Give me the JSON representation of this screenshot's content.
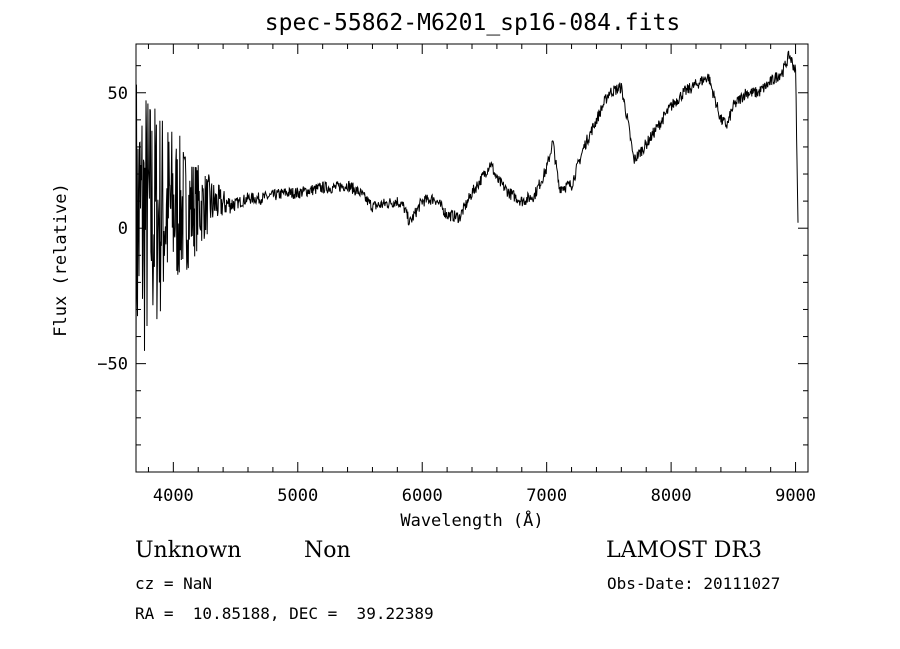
{
  "chart_data": {
    "type": "line",
    "title": "spec-55862-M6201_sp16-084.fits",
    "xlabel": "Wavelength (Å)",
    "ylabel": "Flux (relative)",
    "xlim": [
      3700,
      9100
    ],
    "ylim": [
      -90,
      68
    ],
    "xticks": [
      4000,
      5000,
      6000,
      7000,
      8000,
      9000
    ],
    "xtick_labels": [
      "4000",
      "5000",
      "6000",
      "7000",
      "8000",
      "9000"
    ],
    "yticks": [
      -50,
      0,
      50
    ],
    "ytick_labels": [
      "−50",
      "0",
      "50"
    ],
    "grid": false,
    "legend": "none",
    "series": [
      {
        "x": [
          3700,
          3800,
          3900,
          4000,
          4100,
          4200,
          4300,
          4400,
          4500,
          4600,
          4700,
          4800,
          4900,
          5000,
          5100,
          5200,
          5300,
          5400,
          5500,
          5600,
          5700,
          5800,
          5850,
          5900,
          5950,
          6000,
          6100,
          6200,
          6300,
          6400,
          6500,
          6550,
          6600,
          6700,
          6800,
          6900,
          7000,
          7050,
          7100,
          7200,
          7300,
          7400,
          7500,
          7600,
          7650,
          7700,
          7800,
          7900,
          8000,
          8100,
          8200,
          8300,
          8400,
          8450,
          8500,
          8600,
          8700,
          8800,
          8900,
          8950,
          9000,
          9020
        ],
        "y": [
          2,
          3,
          6,
          7,
          7,
          8,
          9,
          9,
          9,
          11,
          11,
          12,
          13,
          13,
          14,
          15,
          15,
          16,
          13,
          8,
          9,
          10,
          8,
          2,
          6,
          10,
          11,
          5,
          4,
          13,
          20,
          24,
          18,
          13,
          10,
          12,
          22,
          32,
          15,
          16,
          30,
          40,
          50,
          52,
          40,
          25,
          31,
          38,
          45,
          50,
          53,
          56,
          40,
          38,
          45,
          50,
          50,
          54,
          58,
          64,
          58,
          1
        ]
      }
    ],
    "noise_region": {
      "x_start": 3700,
      "x_end": 4500,
      "amplitude_max": 58
    }
  },
  "footer": {
    "object_class": "Unknown",
    "subclass": "Non",
    "survey": "LAMOST DR3",
    "redshift": "cz = NaN",
    "obs_date": "Obs-Date: 20111027",
    "coords": "RA =  10.85188, DEC =  39.22389"
  }
}
